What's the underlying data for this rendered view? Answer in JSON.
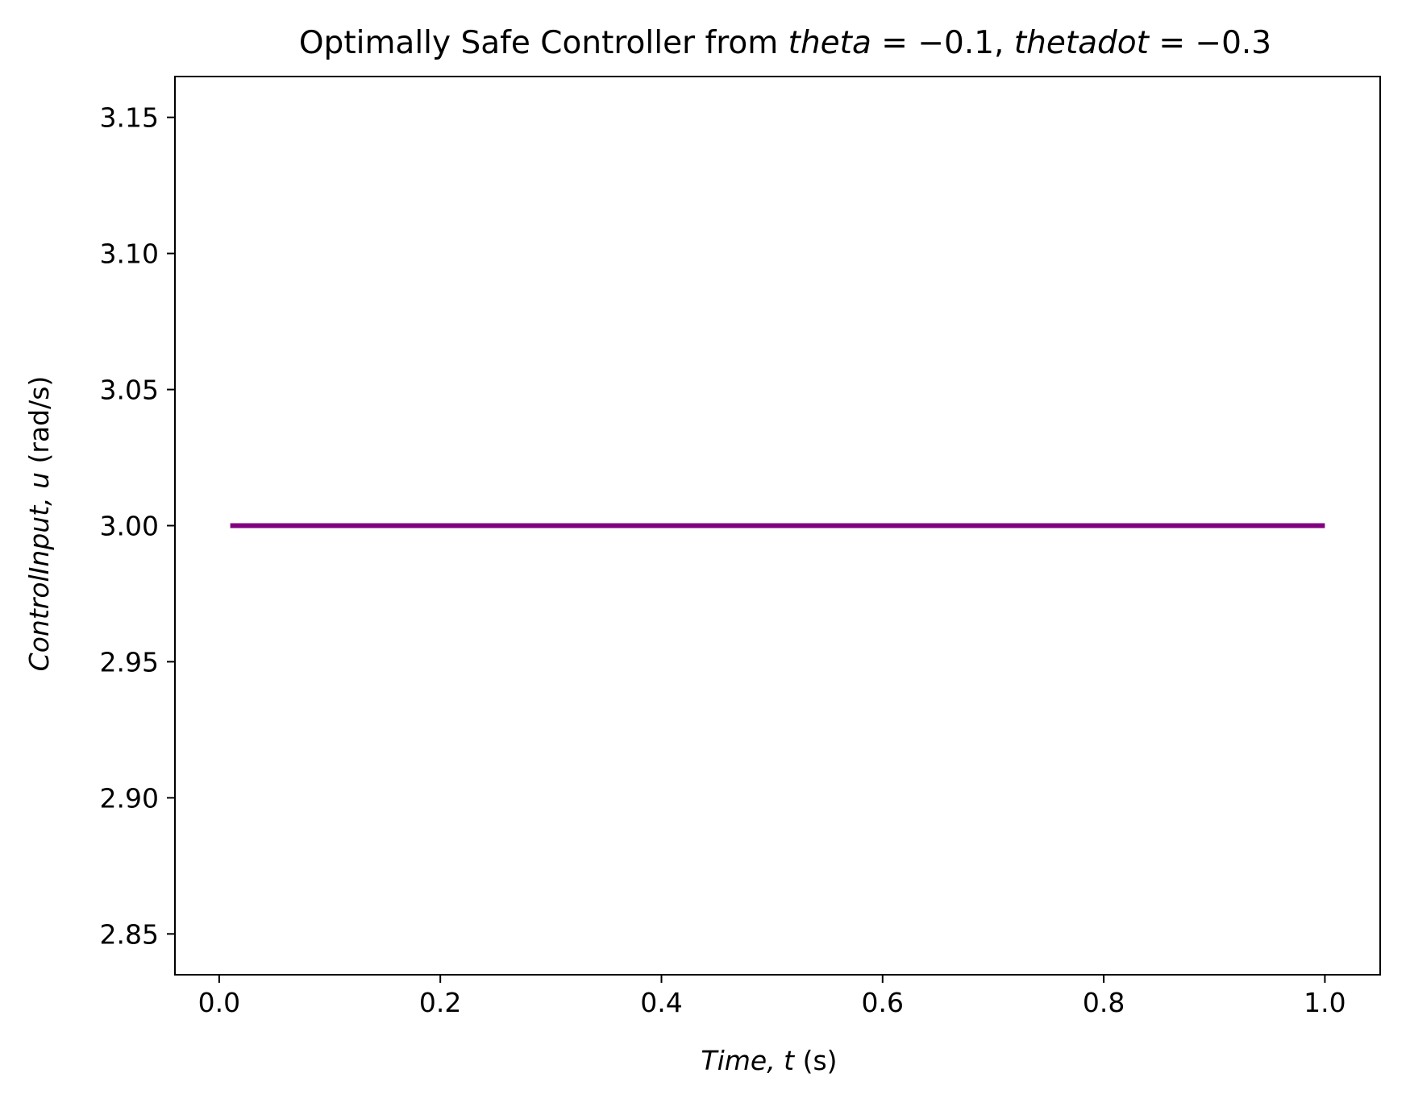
{
  "chart_data": {
    "type": "line",
    "title": {
      "prefix": "Optimally Safe Controller from ",
      "var1": "theta",
      "eq1": " = −0.1, ",
      "var2": "thetadot",
      "eq2": " = −0.3"
    },
    "xlabel": {
      "math": "Time, t",
      "unit": " (s)"
    },
    "ylabel": {
      "math": "ControlInput, u",
      "unit": " (rad/s)"
    },
    "xlim": [
      -0.04,
      1.05
    ],
    "ylim": [
      2.835,
      3.165
    ],
    "xticks": [
      0.0,
      0.2,
      0.4,
      0.6,
      0.8,
      1.0
    ],
    "xtick_labels": [
      "0.0",
      "0.2",
      "0.4",
      "0.6",
      "0.8",
      "1.0"
    ],
    "yticks": [
      2.85,
      2.9,
      2.95,
      3.0,
      3.05,
      3.1,
      3.15
    ],
    "ytick_labels": [
      "2.85",
      "2.90",
      "2.95",
      "3.00",
      "3.05",
      "3.10",
      "3.15"
    ],
    "grid": false,
    "series": [
      {
        "color": "#800080",
        "x": [
          0.01,
          1.0
        ],
        "y": [
          3.0,
          3.0
        ]
      }
    ]
  }
}
